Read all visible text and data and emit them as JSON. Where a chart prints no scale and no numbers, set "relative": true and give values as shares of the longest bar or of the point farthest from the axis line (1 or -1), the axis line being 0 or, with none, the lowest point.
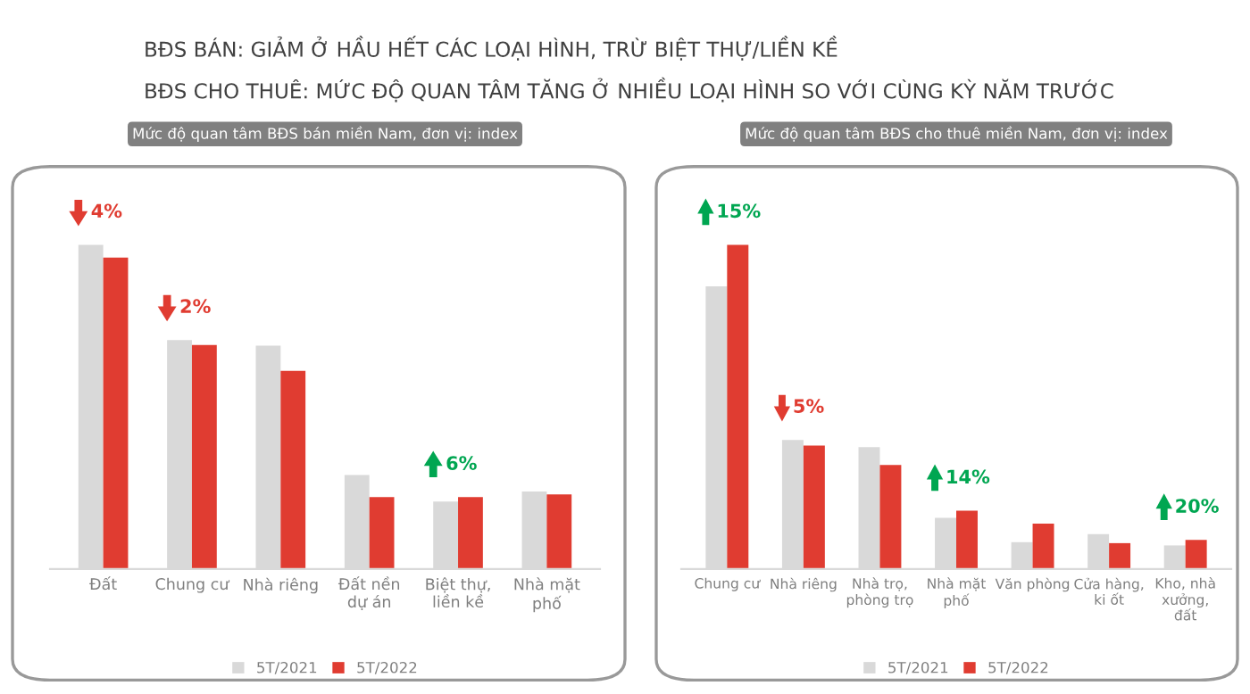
{
  "chart_data": [
    {
      "type": "bar",
      "relative": true,
      "title": "Mức độ quan tâm BĐS bán miền Nam, đơn vị: index",
      "categories": [
        "Đất",
        "Chung cư",
        "Nhà riêng",
        "Đất nền dự án",
        "Biệt thự, liền kề",
        "Nhà mặt phố"
      ],
      "series": [
        {
          "name": "5T/2021",
          "color": "#d9d9d9",
          "values": [
            1,
            0.706,
            0.689,
            0.29,
            0.208,
            0.239
          ]
        },
        {
          "name": "5T/2022",
          "color": "#e03c31",
          "values": [
            0.961,
            0.691,
            0.611,
            0.222,
            0.222,
            0.23
          ]
        }
      ],
      "annotations": [
        "BĐS BÁN: GIẢM Ở HẦU HẾT CÁC LOẠI HÌNH, TRỪ BIỆT THỰ/LIỀN KỀ",
        "BĐS CHO THUÊ: MỨC ĐỘ QUAN TÂM TĂNG Ở NHIỀU LOẠI HÌNH SO VỚI CÙNG KỲ NĂM TRƯỚC",
        {
          "text": "4%",
          "x": "Đất",
          "y": 1
        },
        {
          "text": "2%",
          "x": "Chung cư",
          "y": 0.706
        },
        {
          "text": "6%",
          "x": "Biệt thự, liền kề",
          "y": 0.222
        }
      ],
      "legend": "bottom",
      "grid": false
    },
    {
      "type": "bar",
      "relative": true,
      "title": "Mức độ quan tâm BĐS cho thuê miền Nam, đơn vị: index",
      "categories": [
        "Chung cư",
        "Nhà riêng",
        "Nhà trọ, phòng trọ",
        "Nhà mặt phố",
        "Văn phòng",
        "Cửa hàng, ki ốt",
        "Kho, nhà xưởng, đất"
      ],
      "series": [
        {
          "name": "5T/2021",
          "color": "#d9d9d9",
          "values": [
            0.872,
            0.398,
            0.376,
            0.158,
            0.083,
            0.108,
            0.073
          ]
        },
        {
          "name": "5T/2022",
          "color": "#e03c31",
          "values": [
            1,
            0.381,
            0.321,
            0.18,
            0.14,
            0.08,
            0.09
          ]
        }
      ],
      "annotations": [
        {
          "text": "15%",
          "x": "Chung cư",
          "y": 1
        },
        {
          "text": "5%",
          "x": "Nhà riêng",
          "y": 0.398
        },
        {
          "text": "14%",
          "x": "Nhà mặt phố",
          "y": 0.18
        },
        {
          "text": "20%",
          "x": "Kho, nhà xưởng, đất",
          "y": 0.09
        }
      ],
      "legend": "bottom",
      "grid": false
    }
  ]
}
